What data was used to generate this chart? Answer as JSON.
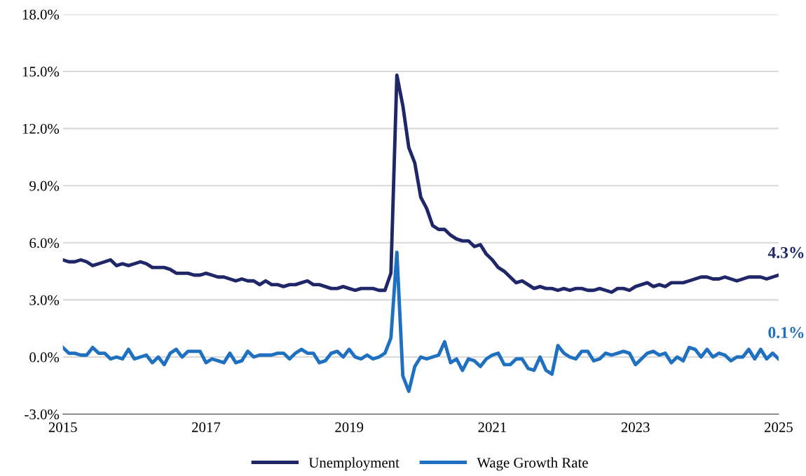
{
  "chart_data": {
    "type": "line",
    "x": [
      "2015-01",
      "2015-02",
      "2015-03",
      "2015-04",
      "2015-05",
      "2015-06",
      "2015-07",
      "2015-08",
      "2015-09",
      "2015-10",
      "2015-11",
      "2015-12",
      "2016-01",
      "2016-02",
      "2016-03",
      "2016-04",
      "2016-05",
      "2016-06",
      "2016-07",
      "2016-08",
      "2016-09",
      "2016-10",
      "2016-11",
      "2016-12",
      "2017-01",
      "2017-02",
      "2017-03",
      "2017-04",
      "2017-05",
      "2017-06",
      "2017-07",
      "2017-08",
      "2017-09",
      "2017-10",
      "2017-11",
      "2017-12",
      "2018-01",
      "2018-02",
      "2018-03",
      "2018-04",
      "2018-05",
      "2018-06",
      "2018-07",
      "2018-08",
      "2018-09",
      "2018-10",
      "2018-11",
      "2018-12",
      "2019-01",
      "2019-02",
      "2019-03",
      "2019-04",
      "2019-05",
      "2019-06",
      "2019-07",
      "2019-08",
      "2019-09",
      "2019-10",
      "2019-11",
      "2019-12",
      "2020-01",
      "2020-02",
      "2020-03",
      "2020-04",
      "2020-05",
      "2020-06",
      "2020-07",
      "2020-08",
      "2020-09",
      "2020-10",
      "2020-11",
      "2020-12",
      "2021-01",
      "2021-02",
      "2021-03",
      "2021-04",
      "2021-05",
      "2021-06",
      "2021-07",
      "2021-08",
      "2021-09",
      "2021-10",
      "2021-11",
      "2021-12",
      "2022-01",
      "2022-02",
      "2022-03",
      "2022-04",
      "2022-05",
      "2022-06",
      "2022-07",
      "2022-08",
      "2022-09",
      "2022-10",
      "2022-11",
      "2022-12",
      "2023-01",
      "2023-02",
      "2023-03",
      "2023-04",
      "2023-05",
      "2023-06",
      "2023-07",
      "2023-08",
      "2023-09",
      "2023-10",
      "2023-11",
      "2023-12",
      "2024-01",
      "2024-02",
      "2024-03",
      "2024-04",
      "2024-05",
      "2024-06",
      "2024-07",
      "2024-08",
      "2024-09",
      "2024-10",
      "2024-11",
      "2024-12",
      "2025-01"
    ],
    "series": [
      {
        "name": "Unemployment",
        "color": "#1f2768",
        "values": [
          5.1,
          5.0,
          5.0,
          5.1,
          5.0,
          4.8,
          4.9,
          5.0,
          5.1,
          4.8,
          4.9,
          4.8,
          4.9,
          5.0,
          4.9,
          4.7,
          4.7,
          4.7,
          4.6,
          4.4,
          4.4,
          4.4,
          4.3,
          4.3,
          4.4,
          4.3,
          4.2,
          4.2,
          4.1,
          4.0,
          4.1,
          4.0,
          4.0,
          3.8,
          4.0,
          3.8,
          3.8,
          3.7,
          3.8,
          3.8,
          3.9,
          4.0,
          3.8,
          3.8,
          3.7,
          3.6,
          3.6,
          3.7,
          3.6,
          3.5,
          3.6,
          3.6,
          3.6,
          3.5,
          3.5,
          4.4,
          14.8,
          13.2,
          11.0,
          10.2,
          8.4,
          7.8,
          6.9,
          6.7,
          6.7,
          6.4,
          6.2,
          6.1,
          6.1,
          5.8,
          5.9,
          5.4,
          5.1,
          4.7,
          4.5,
          4.2,
          3.9,
          4.0,
          3.8,
          3.6,
          3.7,
          3.6,
          3.6,
          3.5,
          3.6,
          3.5,
          3.6,
          3.6,
          3.5,
          3.5,
          3.6,
          3.5,
          3.4,
          3.6,
          3.6,
          3.5,
          3.7,
          3.8,
          3.9,
          3.7,
          3.8,
          3.7,
          3.9,
          3.9,
          3.9,
          4.0,
          4.1,
          4.2,
          4.2,
          4.1,
          4.1,
          4.2,
          4.1,
          4.0,
          4.1,
          4.2,
          4.2,
          4.2,
          4.1,
          4.2,
          4.3
        ]
      },
      {
        "name": "Wage Growth Rate",
        "color": "#1f70c1",
        "values": [
          0.5,
          0.2,
          0.2,
          0.1,
          0.1,
          0.5,
          0.2,
          0.2,
          -0.1,
          0.0,
          -0.1,
          0.4,
          -0.1,
          0.0,
          0.1,
          -0.3,
          0.0,
          -0.4,
          0.2,
          0.4,
          0.0,
          0.3,
          0.3,
          0.3,
          -0.3,
          -0.1,
          -0.2,
          -0.3,
          0.2,
          -0.3,
          -0.2,
          0.3,
          0.0,
          0.1,
          0.1,
          0.1,
          0.2,
          0.2,
          -0.1,
          0.2,
          0.4,
          0.2,
          0.2,
          -0.3,
          -0.2,
          0.2,
          0.3,
          0.0,
          0.4,
          0.0,
          -0.1,
          0.1,
          -0.1,
          0.0,
          0.2,
          1.0,
          5.5,
          -1.0,
          -1.8,
          -0.5,
          0.0,
          -0.1,
          0.0,
          0.1,
          0.8,
          -0.3,
          -0.1,
          -0.7,
          -0.1,
          -0.2,
          -0.5,
          -0.1,
          0.1,
          0.2,
          -0.4,
          -0.4,
          -0.1,
          -0.1,
          -0.6,
          -0.7,
          0.0,
          -0.7,
          -0.9,
          0.6,
          0.2,
          0.0,
          -0.1,
          0.3,
          0.3,
          -0.2,
          -0.1,
          0.2,
          0.1,
          0.2,
          0.3,
          0.2,
          -0.4,
          -0.1,
          0.2,
          0.3,
          0.1,
          0.2,
          -0.3,
          0.0,
          -0.2,
          0.5,
          0.4,
          0.0,
          0.4,
          0.0,
          0.2,
          0.1,
          -0.2,
          0.0,
          0.0,
          0.4,
          -0.1,
          0.4,
          -0.1,
          0.2,
          -0.1
        ]
      }
    ],
    "ylim": [
      -3.0,
      18.0
    ],
    "yticks": [
      {
        "value": -3.0,
        "label": "-3.0%"
      },
      {
        "value": 0.0,
        "label": "0.0%"
      },
      {
        "value": 3.0,
        "label": "3.0%"
      },
      {
        "value": 6.0,
        "label": "6.0%"
      },
      {
        "value": 9.0,
        "label": "9.0%"
      },
      {
        "value": 12.0,
        "label": "12.0%"
      },
      {
        "value": 15.0,
        "label": "15.0%"
      },
      {
        "value": 18.0,
        "label": "18.0%"
      }
    ],
    "xlim": [
      "2015-01",
      "2025-01"
    ],
    "xticks": [
      {
        "value": "2015",
        "label": "2015"
      },
      {
        "value": "2017",
        "label": "2017"
      },
      {
        "value": "2019",
        "label": "2019"
      },
      {
        "value": "2021",
        "label": "2021"
      },
      {
        "value": "2023",
        "label": "2023"
      },
      {
        "value": "2025",
        "label": "2025"
      }
    ],
    "annotations": [
      {
        "text": "4.3%",
        "x": "2025-01",
        "y": 4.3
      },
      {
        "text": "0.1%",
        "x": "2025-01",
        "y": 0.1
      }
    ],
    "grid": "y",
    "legend": "bottom",
    "marker": "none",
    "line_style": "solid"
  }
}
